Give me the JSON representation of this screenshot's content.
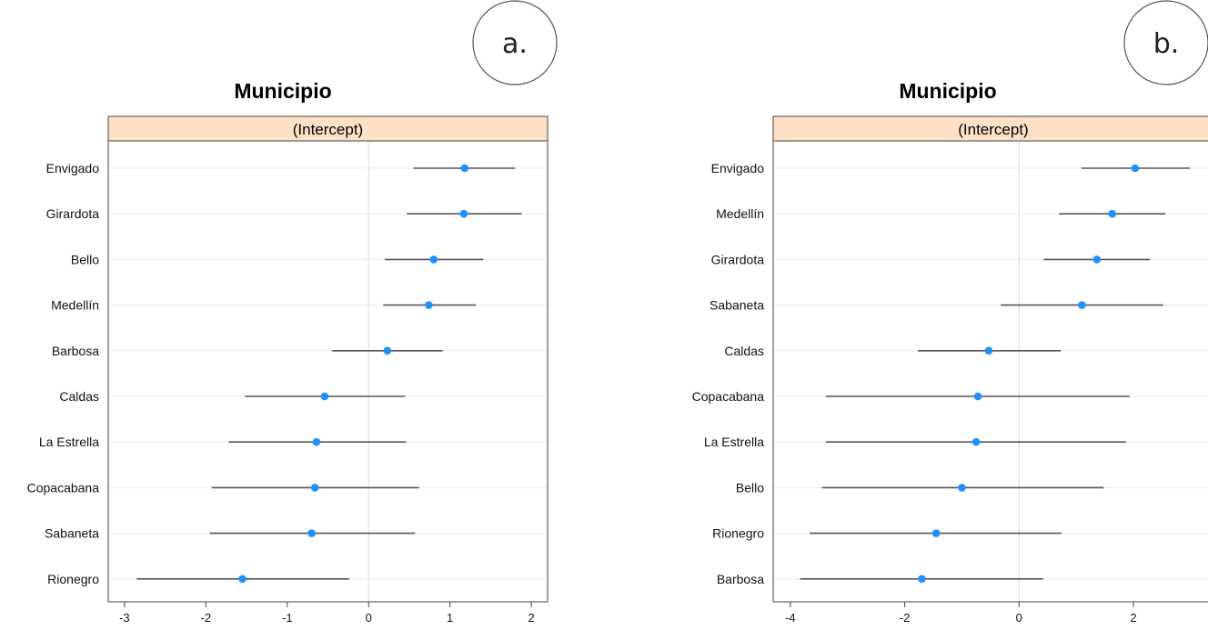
{
  "chart_data": [
    {
      "type": "dot-interval",
      "panel_label": "a.",
      "title": "Municipio",
      "strip_label": "(Intercept)",
      "xlim": [
        -3.2,
        2.2
      ],
      "xticks": [
        -3,
        -2,
        -1,
        0,
        1,
        2
      ],
      "grid": true,
      "reference_line": 0,
      "point_color": "#1e90ff",
      "strip_color": "#fde0c5",
      "categories": [
        "Envigado",
        "Girardota",
        "Bello",
        "Medellín",
        "Barbosa",
        "Caldas",
        "La Estrella",
        "Copacabana",
        "Sabaneta",
        "Rionegro"
      ],
      "estimates": [
        1.18,
        1.17,
        0.8,
        0.74,
        0.23,
        -0.54,
        -0.64,
        -0.66,
        -0.7,
        -1.55
      ],
      "lower": [
        0.55,
        0.47,
        0.2,
        0.18,
        -0.45,
        -1.52,
        -1.72,
        -1.93,
        -1.95,
        -2.85
      ],
      "upper": [
        1.8,
        1.88,
        1.41,
        1.32,
        0.91,
        0.45,
        0.46,
        0.62,
        0.57,
        -0.24
      ]
    },
    {
      "type": "dot-interval",
      "panel_label": "b.",
      "title": "Municipio",
      "strip_label": "(Intercept)",
      "xlim": [
        -4.3,
        3.4
      ],
      "xticks": [
        -4,
        -2,
        0,
        2
      ],
      "grid": true,
      "reference_line": 0,
      "point_color": "#1e90ff",
      "strip_color": "#fde0c5",
      "categories": [
        "Envigado",
        "Medellín",
        "Girardota",
        "Sabaneta",
        "Caldas",
        "Copacabana",
        "La Estrella",
        "Bello",
        "Rionegro",
        "Barbosa"
      ],
      "estimates": [
        2.03,
        1.63,
        1.36,
        1.1,
        -0.53,
        -0.72,
        -0.75,
        -1.0,
        -1.45,
        -1.7
      ],
      "lower": [
        1.09,
        0.7,
        0.43,
        -0.32,
        -1.77,
        -3.38,
        -3.38,
        -3.45,
        -3.66,
        -3.83
      ],
      "upper": [
        2.99,
        2.56,
        2.29,
        2.52,
        0.73,
        1.93,
        1.87,
        1.48,
        0.74,
        0.42
      ]
    }
  ]
}
